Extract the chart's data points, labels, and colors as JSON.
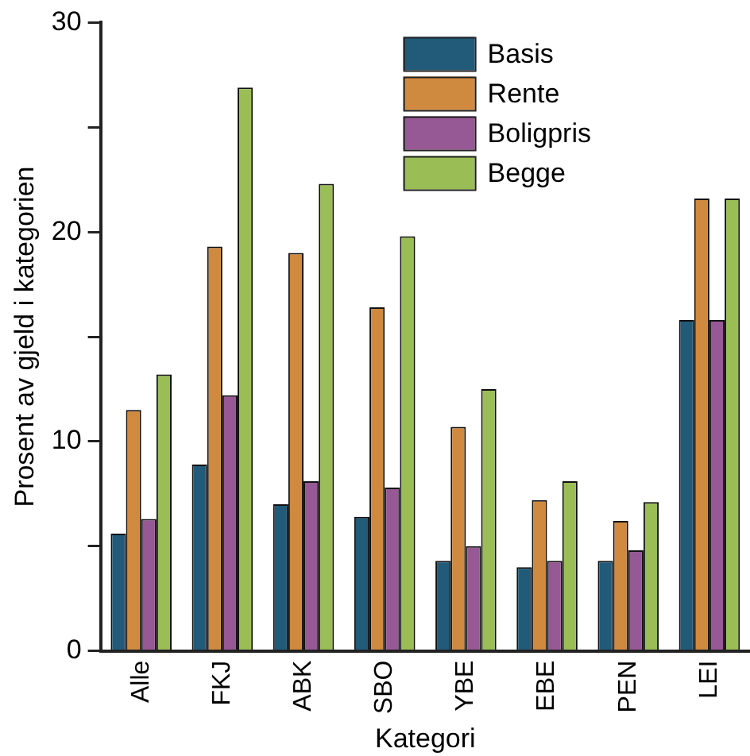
{
  "chart_data": {
    "type": "bar",
    "xlabel": "Kategori",
    "ylabel": "Prosent av gjeld i kategorien",
    "categories": [
      "Alle",
      "FKJ",
      "ABK",
      "SBO",
      "YBE",
      "EBE",
      "PEN",
      "LEI"
    ],
    "series": [
      {
        "name": "Basis",
        "color": "#225a7a",
        "values": [
          5.6,
          8.9,
          7.0,
          6.4,
          4.3,
          4.0,
          4.3,
          15.8
        ]
      },
      {
        "name": "Rente",
        "color": "#d08a40",
        "values": [
          11.5,
          19.3,
          19.0,
          16.4,
          10.7,
          7.2,
          6.2,
          21.6
        ]
      },
      {
        "name": "Boligpris",
        "color": "#975995",
        "values": [
          6.3,
          12.2,
          8.1,
          7.8,
          5.0,
          4.3,
          4.8,
          15.8
        ]
      },
      {
        "name": "Begge",
        "color": "#9bbd56",
        "values": [
          13.2,
          26.9,
          22.3,
          19.8,
          12.5,
          8.1,
          7.1,
          21.6
        ]
      }
    ],
    "ylim": [
      0,
      30
    ],
    "yticks": [
      0,
      {
        "value": 5,
        "label": null
      },
      10,
      {
        "value": 15,
        "label": null
      },
      20,
      {
        "value": 25,
        "label": null
      },
      30
    ],
    "grid": false,
    "legend": "top right"
  }
}
